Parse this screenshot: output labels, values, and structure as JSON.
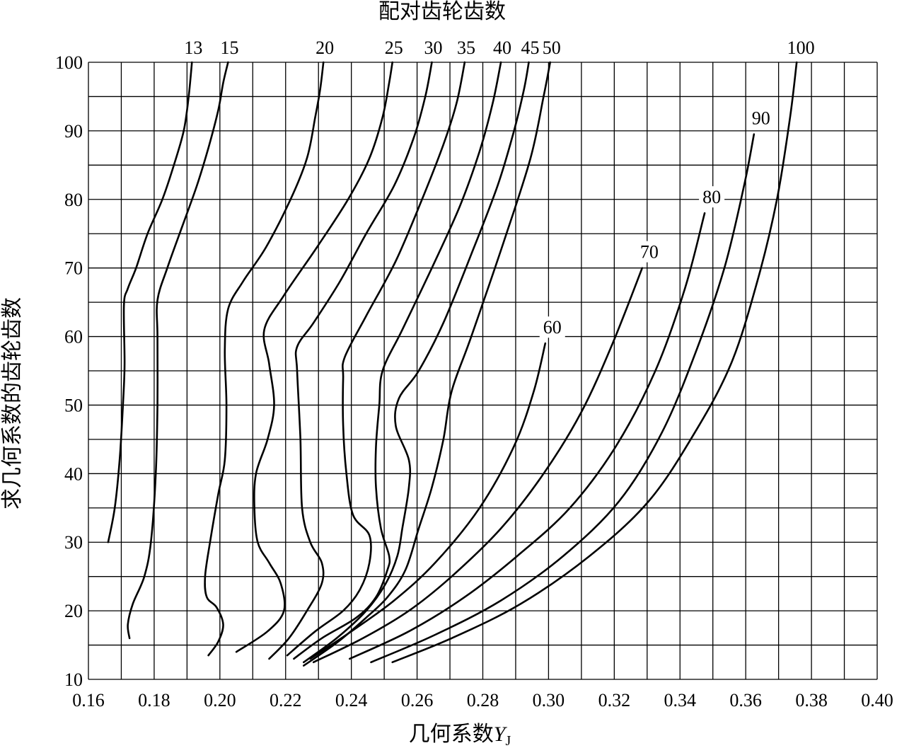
{
  "chart_data": {
    "type": "line",
    "title": "配对齿轮齿数",
    "xlabel_text": "几何系数",
    "xlabel_symbol": "Y",
    "xlabel_sub": "J",
    "ylabel": "求几何系数的齿轮齿数",
    "xlim": [
      0.16,
      0.4
    ],
    "ylim": [
      10,
      100
    ],
    "x_ticks": [
      "0.16",
      "0.18",
      "0.20",
      "0.22",
      "0.24",
      "0.26",
      "0.28",
      "0.30",
      "0.32",
      "0.34",
      "0.36",
      "0.38",
      "0.40"
    ],
    "y_ticks": [
      "10",
      "20",
      "30",
      "40",
      "50",
      "60",
      "70",
      "80",
      "90",
      "100"
    ],
    "grid": true,
    "series": [
      {
        "name": "13",
        "points": [
          [
            0.166,
            30
          ],
          [
            0.168,
            35
          ],
          [
            0.1695,
            42
          ],
          [
            0.1705,
            50
          ],
          [
            0.171,
            56
          ],
          [
            0.1708,
            64.6
          ],
          [
            0.172,
            67
          ],
          [
            0.1745,
            70
          ],
          [
            0.178,
            75
          ],
          [
            0.1825,
            80
          ],
          [
            0.186,
            85
          ],
          [
            0.189,
            90
          ],
          [
            0.1905,
            95
          ],
          [
            0.1915,
            100
          ]
        ]
      },
      {
        "name": "15",
        "points": [
          [
            0.1725,
            16
          ],
          [
            0.172,
            18
          ],
          [
            0.1735,
            21
          ],
          [
            0.177,
            25
          ],
          [
            0.179,
            30
          ],
          [
            0.1805,
            40
          ],
          [
            0.181,
            50
          ],
          [
            0.181,
            60
          ],
          [
            0.181,
            65.3
          ],
          [
            0.184,
            70
          ],
          [
            0.1885,
            76
          ],
          [
            0.193,
            82
          ],
          [
            0.1965,
            87.5
          ],
          [
            0.1995,
            93
          ],
          [
            0.201,
            97
          ],
          [
            0.2025,
            100
          ]
        ]
      },
      {
        "name": "20",
        "points": [
          [
            0.1965,
            13.5
          ],
          [
            0.1995,
            15.5
          ],
          [
            0.201,
            18
          ],
          [
            0.199,
            20.5
          ],
          [
            0.196,
            22
          ],
          [
            0.1955,
            25
          ],
          [
            0.197,
            30
          ],
          [
            0.1995,
            37
          ],
          [
            0.2015,
            42
          ],
          [
            0.202,
            50
          ],
          [
            0.2015,
            58
          ],
          [
            0.2025,
            64
          ],
          [
            0.207,
            68
          ],
          [
            0.214,
            73
          ],
          [
            0.2215,
            80
          ],
          [
            0.2265,
            86
          ],
          [
            0.229,
            92
          ],
          [
            0.2305,
            96
          ],
          [
            0.2315,
            100
          ]
        ]
      },
      {
        "name": "25",
        "points": [
          [
            0.205,
            14
          ],
          [
            0.2145,
            17
          ],
          [
            0.2195,
            20
          ],
          [
            0.2185,
            24
          ],
          [
            0.215,
            27
          ],
          [
            0.2115,
            30
          ],
          [
            0.2105,
            35
          ],
          [
            0.211,
            40
          ],
          [
            0.2145,
            45
          ],
          [
            0.2165,
            50
          ],
          [
            0.215,
            56
          ],
          [
            0.2135,
            61
          ],
          [
            0.2195,
            66
          ],
          [
            0.2295,
            73
          ],
          [
            0.239,
            80
          ],
          [
            0.2455,
            86
          ],
          [
            0.2495,
            92
          ],
          [
            0.2515,
            97
          ],
          [
            0.2525,
            100
          ]
        ]
      },
      {
        "name": "30",
        "points": [
          [
            0.215,
            13
          ],
          [
            0.221,
            16
          ],
          [
            0.2265,
            20
          ],
          [
            0.231,
            24
          ],
          [
            0.231,
            27
          ],
          [
            0.2275,
            30
          ],
          [
            0.225,
            35
          ],
          [
            0.2245,
            45
          ],
          [
            0.2235,
            55
          ],
          [
            0.2235,
            58.5
          ],
          [
            0.2285,
            62
          ],
          [
            0.2365,
            68
          ],
          [
            0.2445,
            75
          ],
          [
            0.253,
            82
          ],
          [
            0.259,
            89
          ],
          [
            0.2625,
            95
          ],
          [
            0.2645,
            100
          ]
        ]
      },
      {
        "name": "35",
        "points": [
          [
            0.2205,
            13.5
          ],
          [
            0.229,
            17
          ],
          [
            0.2375,
            20
          ],
          [
            0.2425,
            23
          ],
          [
            0.2455,
            27
          ],
          [
            0.2455,
            31
          ],
          [
            0.2405,
            34
          ],
          [
            0.2385,
            40
          ],
          [
            0.2375,
            47
          ],
          [
            0.2375,
            54
          ],
          [
            0.238,
            57
          ],
          [
            0.2445,
            63
          ],
          [
            0.2535,
            71
          ],
          [
            0.2615,
            80
          ],
          [
            0.268,
            88
          ],
          [
            0.272,
            94
          ],
          [
            0.2745,
            100
          ]
        ]
      },
      {
        "name": "40",
        "points": [
          [
            0.2225,
            13
          ],
          [
            0.231,
            16
          ],
          [
            0.2415,
            19
          ],
          [
            0.2475,
            22
          ],
          [
            0.251,
            26
          ],
          [
            0.2515,
            28
          ],
          [
            0.249,
            32
          ],
          [
            0.2475,
            38
          ],
          [
            0.2475,
            44
          ],
          [
            0.2485,
            50
          ],
          [
            0.2495,
            55
          ],
          [
            0.2555,
            61
          ],
          [
            0.2645,
            70
          ],
          [
            0.273,
            79
          ],
          [
            0.279,
            87
          ],
          [
            0.283,
            94
          ],
          [
            0.2855,
            100
          ]
        ]
      },
      {
        "name": "45",
        "points": [
          [
            0.2255,
            12.5
          ],
          [
            0.2355,
            16
          ],
          [
            0.2445,
            20
          ],
          [
            0.2505,
            24
          ],
          [
            0.254,
            28
          ],
          [
            0.2555,
            32
          ],
          [
            0.2575,
            38
          ],
          [
            0.2575,
            42
          ],
          [
            0.2535,
            47
          ],
          [
            0.2545,
            51
          ],
          [
            0.2605,
            55
          ],
          [
            0.268,
            62
          ],
          [
            0.2765,
            72
          ],
          [
            0.2845,
            82
          ],
          [
            0.2895,
            90
          ],
          [
            0.2925,
            96
          ],
          [
            0.294,
            100
          ]
        ]
      },
      {
        "name": "50",
        "points": [
          [
            0.2255,
            12
          ],
          [
            0.236,
            15.5
          ],
          [
            0.2445,
            19
          ],
          [
            0.251,
            22
          ],
          [
            0.2565,
            26
          ],
          [
            0.2605,
            32
          ],
          [
            0.2645,
            38
          ],
          [
            0.268,
            45
          ],
          [
            0.2705,
            52
          ],
          [
            0.2765,
            60
          ],
          [
            0.2865,
            74
          ],
          [
            0.2945,
            86
          ],
          [
            0.2985,
            95
          ],
          [
            0.3005,
            100
          ]
        ]
      },
      {
        "name": "60",
        "points": [
          [
            0.2275,
            13
          ],
          [
            0.24,
            17
          ],
          [
            0.253,
            21.5
          ],
          [
            0.2655,
            27
          ],
          [
            0.279,
            35
          ],
          [
            0.2895,
            44
          ],
          [
            0.2955,
            52
          ],
          [
            0.299,
            59
          ]
        ]
      },
      {
        "name": "70",
        "points": [
          [
            0.2285,
            12.5
          ],
          [
            0.2435,
            16
          ],
          [
            0.2575,
            20
          ],
          [
            0.2705,
            25
          ],
          [
            0.2855,
            32
          ],
          [
            0.2985,
            40
          ],
          [
            0.31,
            49
          ],
          [
            0.3195,
            59
          ],
          [
            0.3285,
            70
          ]
        ]
      },
      {
        "name": "80",
        "points": [
          [
            0.2395,
            13
          ],
          [
            0.2575,
            17
          ],
          [
            0.2745,
            22
          ],
          [
            0.2905,
            28
          ],
          [
            0.3065,
            35
          ],
          [
            0.3205,
            44
          ],
          [
            0.3325,
            55
          ],
          [
            0.3415,
            67
          ],
          [
            0.3475,
            78
          ]
        ]
      },
      {
        "name": "90",
        "points": [
          [
            0.246,
            12.5
          ],
          [
            0.2655,
            16.5
          ],
          [
            0.2855,
            21.5
          ],
          [
            0.3045,
            28
          ],
          [
            0.3215,
            36
          ],
          [
            0.3345,
            46
          ],
          [
            0.345,
            58
          ],
          [
            0.3535,
            70
          ],
          [
            0.3595,
            82
          ],
          [
            0.3625,
            89.5
          ]
        ]
      },
      {
        "name": "100",
        "points": [
          [
            0.2525,
            12.5
          ],
          [
            0.2705,
            16
          ],
          [
            0.2915,
            21
          ],
          [
            0.3125,
            28
          ],
          [
            0.3305,
            36
          ],
          [
            0.3445,
            46
          ],
          [
            0.3555,
            56
          ],
          [
            0.3635,
            68
          ],
          [
            0.3695,
            80
          ],
          [
            0.3735,
            92
          ],
          [
            0.3755,
            100
          ]
        ]
      }
    ]
  }
}
